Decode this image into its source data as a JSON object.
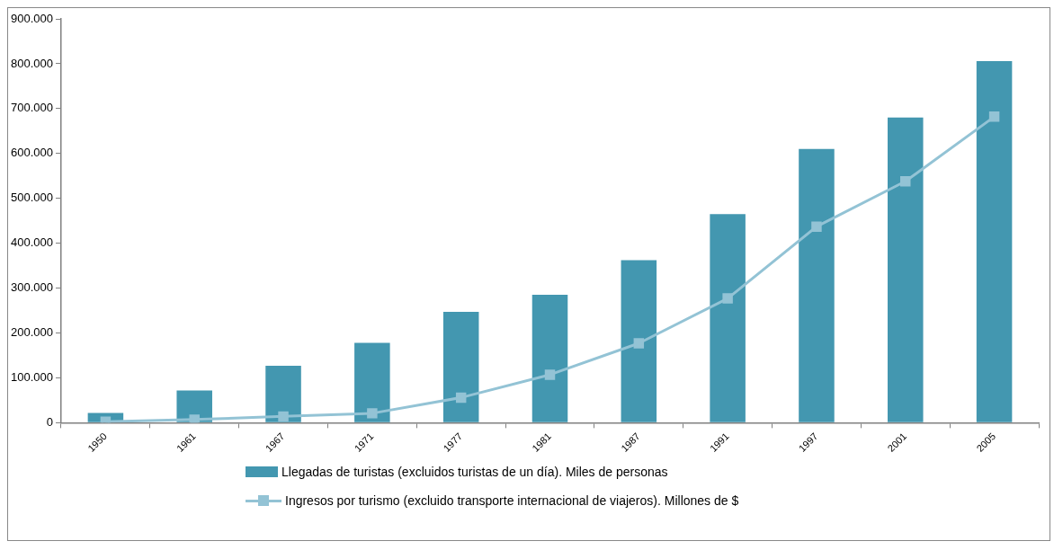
{
  "chart_data": {
    "type": "bar",
    "categories": [
      "1950",
      "1961",
      "1967",
      "1971",
      "1977",
      "1981",
      "1987",
      "1991",
      "1997",
      "2001",
      "2005"
    ],
    "series": [
      {
        "name": "Llegadas de turistas (excluidos turistas  de un día). Miles de personas",
        "color": "#4397b0",
        "values": [
          22000,
          72000,
          127000,
          178000,
          247000,
          285000,
          362000,
          465000,
          610000,
          680000,
          806000
        ]
      },
      {
        "name": "Ingresos por turismo (excluido transporte internacional de viajeros). Millones de $",
        "type": "line",
        "color": "#93c3d5",
        "values": [
          2000,
          7000,
          14000,
          21000,
          56000,
          107000,
          177000,
          277000,
          437000,
          538000,
          682000
        ]
      }
    ],
    "ylim": [
      0,
      900000
    ],
    "yticks": [
      0,
      {
        "value": 100000,
        "label": "100.000"
      },
      {
        "value": 200000,
        "label": "200.000"
      },
      {
        "value": 300000,
        "label": "300.000"
      },
      {
        "value": 400000,
        "label": "400.000"
      },
      {
        "value": 500000,
        "label": "500.000"
      },
      {
        "value": 600000,
        "label": "600.000"
      },
      {
        "value": 700000,
        "label": "700.000"
      },
      {
        "value": 800000,
        "label": "800.000"
      },
      {
        "value": 900000,
        "label": "900.000"
      }
    ],
    "grid": false,
    "legend": "bottom",
    "marker": "square",
    "line_style": "solid"
  }
}
